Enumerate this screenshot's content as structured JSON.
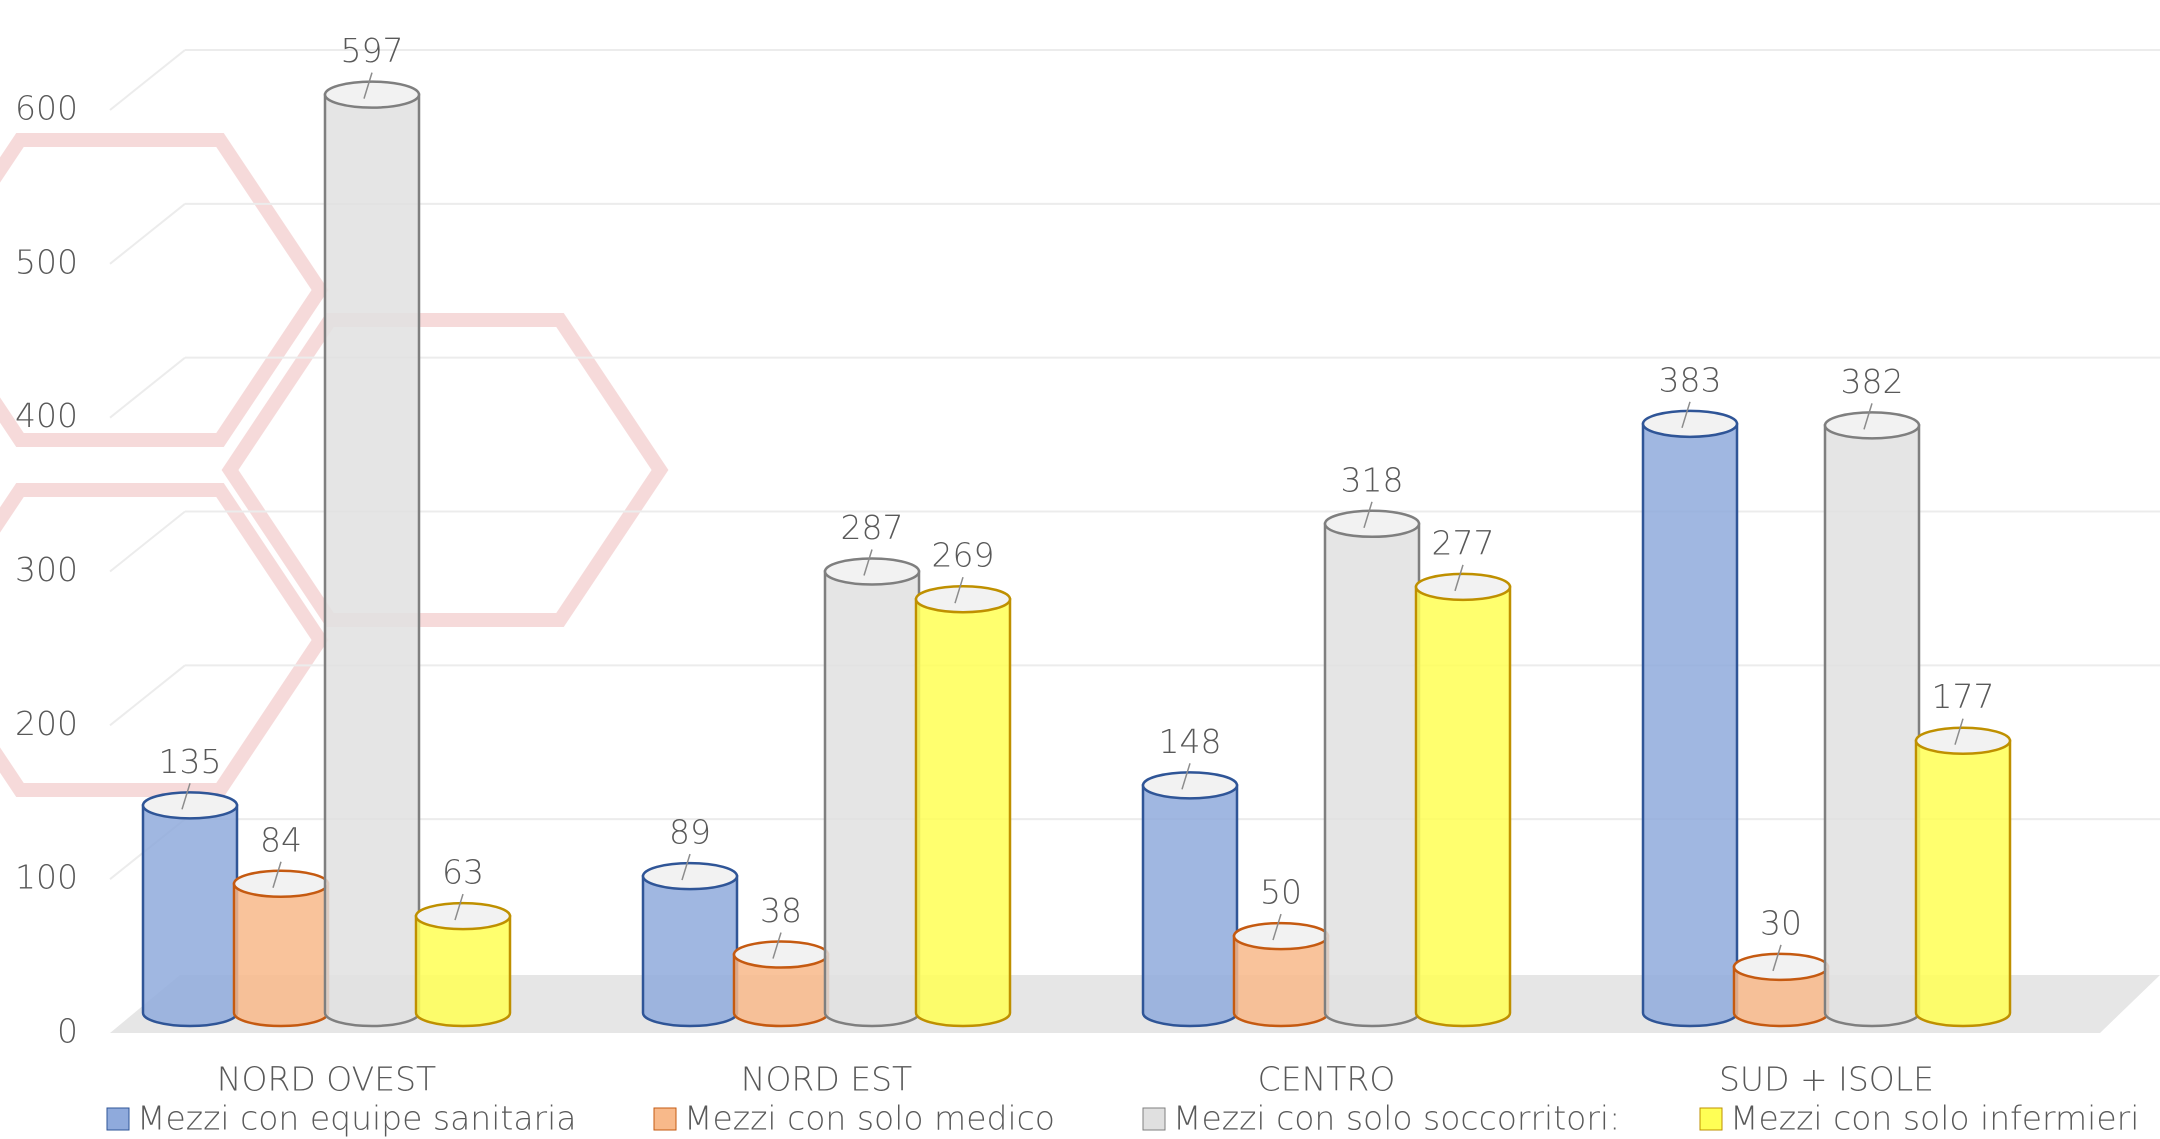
{
  "chart_data": {
    "type": "bar",
    "categories": [
      "NORD OVEST",
      "NORD EST",
      "CENTRO",
      "SUD + ISOLE"
    ],
    "series": [
      {
        "name": "Mezzi con equipe sanitaria",
        "color": "#8faadc",
        "stroke": "#2f5597",
        "values": [
          135,
          89,
          148,
          383
        ]
      },
      {
        "name": "Mezzi con solo medico",
        "color": "#f8b98a",
        "stroke": "#c55a11",
        "values": [
          84,
          38,
          50,
          30
        ]
      },
      {
        "name": "Mezzi con solo soccorritori:",
        "color": "#e0e0e0",
        "stroke": "#7f7f7f",
        "values": [
          597,
          287,
          318,
          382
        ]
      },
      {
        "name": "Mezzi con solo infermieri",
        "color": "#ffff55",
        "stroke": "#bf9000",
        "values": [
          63,
          269,
          277,
          177
        ]
      }
    ],
    "ylim": [
      0,
      600
    ],
    "yticks": [
      0,
      100,
      200,
      300,
      400,
      500,
      600
    ],
    "grid": true
  }
}
